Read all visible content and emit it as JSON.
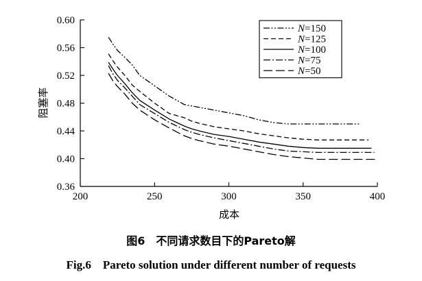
{
  "chart_data": {
    "type": "line",
    "title": "",
    "xlabel": "成本",
    "ylabel": "阻塞率",
    "xlim": [
      200,
      400
    ],
    "ylim": [
      0.36,
      0.6
    ],
    "xticks": [
      200,
      250,
      300,
      350,
      400
    ],
    "xtick_labels": [
      "200",
      "250",
      "300",
      "350",
      "400"
    ],
    "yticks": [
      0.36,
      0.4,
      0.44,
      0.48,
      0.52,
      0.56,
      0.6
    ],
    "ytick_labels": [
      "0.36",
      "0.40",
      "0.44",
      "0.48",
      "0.52",
      "0.56",
      "0.60"
    ],
    "grid": false,
    "legend_position": "top-right",
    "series": [
      {
        "name_prefix": "N",
        "name_suffix": "=150",
        "dash": "dash-dot-dot",
        "color": "#000000",
        "x": [
          219,
          222,
          225,
          230,
          235,
          240,
          250,
          260,
          270,
          275,
          280,
          290,
          300,
          310,
          320,
          330,
          340,
          360,
          380,
          388
        ],
        "y": [
          0.575,
          0.565,
          0.556,
          0.546,
          0.535,
          0.52,
          0.505,
          0.49,
          0.478,
          0.476,
          0.474,
          0.47,
          0.466,
          0.462,
          0.456,
          0.452,
          0.45,
          0.45,
          0.45,
          0.45
        ]
      },
      {
        "name_prefix": "N",
        "name_suffix": "=125",
        "dash": "dashed",
        "color": "#000000",
        "x": [
          219,
          222,
          225,
          230,
          235,
          240,
          250,
          260,
          270,
          275,
          280,
          290,
          300,
          310,
          320,
          330,
          340,
          350,
          360,
          380,
          394
        ],
        "y": [
          0.551,
          0.541,
          0.532,
          0.52,
          0.506,
          0.497,
          0.48,
          0.465,
          0.459,
          0.454,
          0.451,
          0.446,
          0.443,
          0.44,
          0.436,
          0.433,
          0.43,
          0.428,
          0.427,
          0.427,
          0.427
        ]
      },
      {
        "name_prefix": "N",
        "name_suffix": "=100",
        "dash": "solid",
        "color": "#000000",
        "x": [
          219,
          222,
          225,
          230,
          235,
          240,
          250,
          260,
          270,
          275,
          280,
          290,
          300,
          310,
          320,
          330,
          340,
          350,
          360,
          380,
          396
        ],
        "y": [
          0.539,
          0.529,
          0.52,
          0.508,
          0.495,
          0.484,
          0.47,
          0.457,
          0.447,
          0.443,
          0.44,
          0.435,
          0.432,
          0.428,
          0.424,
          0.421,
          0.418,
          0.416,
          0.415,
          0.415,
          0.415
        ]
      },
      {
        "name_prefix": "N",
        "name_suffix": "=75",
        "dash": "dash-dot",
        "color": "#000000",
        "x": [
          219,
          222,
          225,
          230,
          235,
          240,
          250,
          260,
          270,
          275,
          280,
          290,
          300,
          310,
          320,
          330,
          340,
          350,
          360,
          380,
          398
        ],
        "y": [
          0.534,
          0.522,
          0.513,
          0.502,
          0.49,
          0.478,
          0.465,
          0.452,
          0.442,
          0.438,
          0.435,
          0.43,
          0.426,
          0.422,
          0.418,
          0.414,
          0.411,
          0.41,
          0.409,
          0.409,
          0.409
        ]
      },
      {
        "name_prefix": "N",
        "name_suffix": "=50",
        "dash": "long-dash",
        "color": "#000000",
        "x": [
          219,
          222,
          225,
          230,
          235,
          240,
          250,
          260,
          270,
          275,
          280,
          290,
          300,
          310,
          320,
          330,
          340,
          350,
          360,
          380,
          399
        ],
        "y": [
          0.523,
          0.512,
          0.504,
          0.493,
          0.48,
          0.47,
          0.456,
          0.444,
          0.433,
          0.429,
          0.426,
          0.421,
          0.418,
          0.414,
          0.41,
          0.406,
          0.403,
          0.401,
          0.399,
          0.399,
          0.399
        ]
      }
    ]
  },
  "caption": {
    "cn": "图6　不同请求数目下的Pareto解",
    "en": "Fig.6　Pareto solution under different number of requests"
  }
}
